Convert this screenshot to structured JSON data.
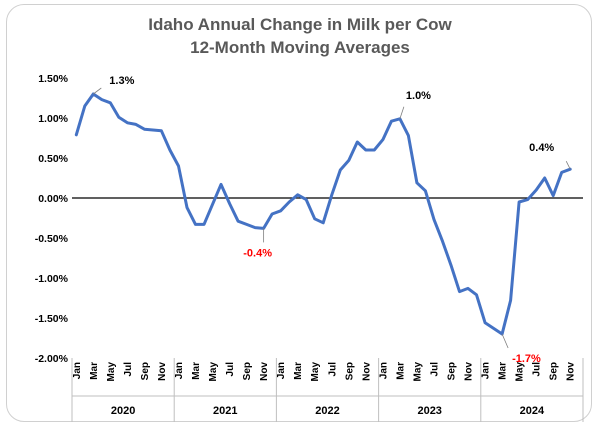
{
  "chart_data": {
    "type": "line",
    "title_lines": [
      "Idaho Annual Change in Milk per Cow",
      "12-Month Moving Averages"
    ],
    "xlabel": "",
    "ylabel": "",
    "ylim": [
      -2.0,
      1.5
    ],
    "y_ticks": [
      "1.50%",
      "1.00%",
      "0.50%",
      "0.00%",
      "-0.50%",
      "-1.00%",
      "-1.50%",
      "-2.00%"
    ],
    "y_tick_values": [
      1.5,
      1.0,
      0.5,
      0.0,
      -0.5,
      -1.0,
      -1.5,
      -2.0
    ],
    "month_tick_labels": [
      "Jan",
      "Mar",
      "May",
      "Jul",
      "Sep",
      "Nov"
    ],
    "years": [
      "2020",
      "2021",
      "2022",
      "2023",
      "2024"
    ],
    "grid": false,
    "legend": "none",
    "line_color": "#4472C4",
    "zero_line_color": "#000000",
    "series": [
      {
        "values": [
          0.79,
          1.15,
          1.3,
          1.23,
          1.19,
          1.01,
          0.94,
          0.92,
          0.86,
          0.85,
          0.84,
          0.6,
          0.4,
          -0.12,
          -0.33,
          -0.33,
          -0.08,
          0.17,
          -0.07,
          -0.29,
          -0.33,
          -0.37,
          -0.38,
          -0.2,
          -0.16,
          -0.05,
          0.04,
          -0.02,
          -0.26,
          -0.31,
          0.04,
          0.35,
          0.47,
          0.7,
          0.6,
          0.6,
          0.73,
          0.96,
          0.99,
          0.78,
          0.19,
          0.09,
          -0.27,
          -0.54,
          -0.84,
          -1.17,
          -1.13,
          -1.21,
          -1.56,
          -1.63,
          -1.7,
          -1.28,
          -0.05,
          -0.02,
          0.1,
          0.25,
          0.03,
          0.32,
          0.36
        ]
      }
    ],
    "annotations": [
      {
        "index": 2,
        "value": 1.3,
        "text": "1.3%",
        "color": "#000000"
      },
      {
        "index": 22,
        "value": -0.38,
        "text": "-0.4%",
        "color": "#FF0000"
      },
      {
        "index": 38,
        "value": 0.99,
        "text": "1.0%",
        "color": "#000000"
      },
      {
        "index": 50,
        "value": -1.7,
        "text": "-1.7%",
        "color": "#FF0000"
      },
      {
        "index": 58,
        "value": 0.36,
        "text": "0.4%",
        "color": "#000000"
      }
    ]
  }
}
